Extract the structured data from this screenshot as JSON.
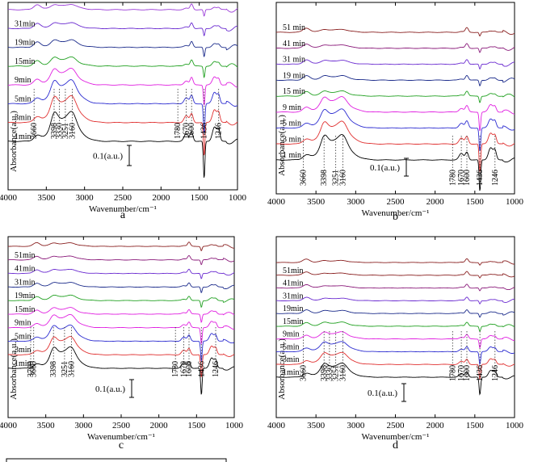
{
  "figure": {
    "bottom_box": ""
  },
  "chart_data": [
    {
      "id": "a",
      "type": "line",
      "panel_label": "a",
      "xlabel": "Wavenumber/cm⁻¹",
      "ylabel": "Absorbance(a.u.)",
      "xlim": [
        4000,
        1000
      ],
      "xticks": [
        4000,
        3500,
        3000,
        2500,
        2000,
        1500,
        1000
      ],
      "scale_bar": "0.1(a.u.)",
      "series_order_bottom_to_top": [
        "1min",
        "3min",
        "5min",
        "9min",
        "15min",
        "19min",
        "31min",
        "top (unlabeled)"
      ],
      "series": [
        {
          "name": "1min",
          "color": "#000000",
          "strength": 1.0
        },
        {
          "name": "3min",
          "color": "#e03030",
          "strength": 0.9
        },
        {
          "name": "5min",
          "color": "#2b2bd0",
          "strength": 0.8
        },
        {
          "name": "9min",
          "color": "#e020e0",
          "strength": 0.55
        },
        {
          "name": "15min",
          "color": "#20a020",
          "strength": 0.3
        },
        {
          "name": "19min",
          "color": "#1a2a8a",
          "strength": 0.25
        },
        {
          "name": "31min",
          "color": "#6a2ad0",
          "strength": 0.2
        },
        {
          "name": "",
          "color": "#9a3ad8",
          "strength": 0.18
        }
      ],
      "annotations": [
        "3660",
        "3398",
        "3330",
        "3251",
        "3160",
        "1780",
        "1670",
        "1600",
        "1436",
        "1246"
      ]
    },
    {
      "id": "b",
      "type": "line",
      "panel_label": "b",
      "xlabel": "Wavenumber/cm⁻¹",
      "ylabel": "Absorbance(a.u.)",
      "xlim": [
        4000,
        1000
      ],
      "xticks": [
        4000,
        3500,
        3000,
        2500,
        2000,
        1500,
        1000
      ],
      "scale_bar": "0.1(a.u.)",
      "series_order_bottom_to_top": [
        "1 min",
        "3 min",
        "5 min",
        "9 min",
        "15 min",
        "19 min",
        "31 min",
        "41 min",
        "51 min"
      ],
      "series": [
        {
          "name": "1 min",
          "color": "#000000",
          "strength": 1.0
        },
        {
          "name": "3 min",
          "color": "#e03030",
          "strength": 0.9
        },
        {
          "name": "5 min",
          "color": "#2b2bd0",
          "strength": 0.75
        },
        {
          "name": "9 min",
          "color": "#e020e0",
          "strength": 0.6
        },
        {
          "name": "15 min",
          "color": "#20a020",
          "strength": 0.2
        },
        {
          "name": "19 min",
          "color": "#1a2a8a",
          "strength": 0.18
        },
        {
          "name": "31 min",
          "color": "#6a2ad0",
          "strength": 0.16
        },
        {
          "name": "41 min",
          "color": "#8a1a7a",
          "strength": 0.14
        },
        {
          "name": "51 min",
          "color": "#8a2020",
          "strength": 0.12
        }
      ],
      "annotations": [
        "3660",
        "3398",
        "3251",
        "3160",
        "1780",
        "1670",
        "1600",
        "1436",
        "1246"
      ]
    },
    {
      "id": "c",
      "type": "line",
      "panel_label": "c",
      "xlabel": "Wavenumber/cm⁻¹",
      "ylabel": "Absorbance(a.u.)",
      "xlim": [
        4000,
        1000
      ],
      "xticks": [
        4000,
        3500,
        3000,
        2500,
        2000,
        1500,
        1000
      ],
      "scale_bar": "0.1(a.u.)",
      "series_order_bottom_to_top": [
        "1min",
        "3min",
        "5min",
        "9min",
        "15min",
        "19min",
        "31min",
        "41min",
        "51min",
        "top (unlabeled)"
      ],
      "series": [
        {
          "name": "1min",
          "color": "#000000",
          "strength": 1.0
        },
        {
          "name": "3min",
          "color": "#e03030",
          "strength": 0.85
        },
        {
          "name": "5min",
          "color": "#2b2bd0",
          "strength": 0.75
        },
        {
          "name": "9min",
          "color": "#e020e0",
          "strength": 0.6
        },
        {
          "name": "15min",
          "color": "#e020e0",
          "strength": 0.3
        },
        {
          "name": "19min",
          "color": "#20a020",
          "strength": 0.25
        },
        {
          "name": "31min",
          "color": "#1a2a8a",
          "strength": 0.22
        },
        {
          "name": "41min",
          "color": "#6a2ad0",
          "strength": 0.2
        },
        {
          "name": "51min",
          "color": "#8a1a7a",
          "strength": 0.18
        },
        {
          "name": "",
          "color": "#8a2020",
          "strength": 0.16
        }
      ],
      "annotations": [
        "3700",
        "3660",
        "3398",
        "3251",
        "3160",
        "1780",
        "1670",
        "1600",
        "1436",
        "1246"
      ]
    },
    {
      "id": "d",
      "type": "line",
      "panel_label": "d",
      "xlabel": "Wavenumber/cm⁻¹",
      "ylabel": "Absorbance(a.u.)",
      "xlim": [
        4000,
        1000
      ],
      "xticks": [
        4000,
        3500,
        3000,
        2500,
        2000,
        1500,
        1000
      ],
      "scale_bar": "0.1(a.u.)",
      "series_order_bottom_to_top": [
        "1min",
        "3min",
        "5min",
        "9min",
        "15min",
        "19min",
        "31min",
        "41min",
        "51min",
        "top (unlabeled)"
      ],
      "series": [
        {
          "name": "1min",
          "color": "#000000",
          "strength": 0.7
        },
        {
          "name": "3min",
          "color": "#e03030",
          "strength": 0.6
        },
        {
          "name": "5min",
          "color": "#2b2bd0",
          "strength": 0.5
        },
        {
          "name": "9min",
          "color": "#e020e0",
          "strength": 0.35
        },
        {
          "name": "15min",
          "color": "#20a020",
          "strength": 0.2
        },
        {
          "name": "19min",
          "color": "#1a2a8a",
          "strength": 0.15
        },
        {
          "name": "31min",
          "color": "#6a2ad0",
          "strength": 0.13
        },
        {
          "name": "41min",
          "color": "#8a1a7a",
          "strength": 0.12
        },
        {
          "name": "51min",
          "color": "#8a2020",
          "strength": 0.11
        },
        {
          "name": "",
          "color": "#8a2020",
          "strength": 0.1
        }
      ],
      "annotations": [
        "3660",
        "3398",
        "3330",
        "3251",
        "3160",
        "1780",
        "1670",
        "1600",
        "1436",
        "1246"
      ]
    }
  ]
}
